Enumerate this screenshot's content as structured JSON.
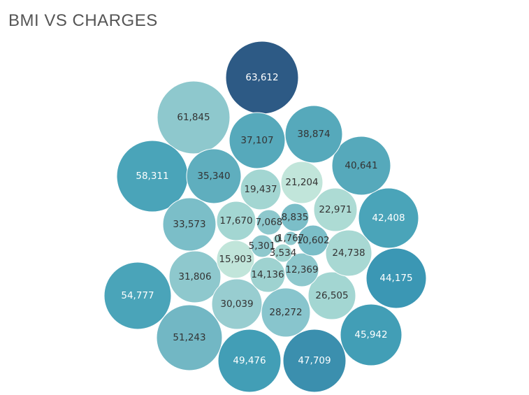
{
  "chart_data": {
    "type": "packed-bubble",
    "title": "BMI VS CHARGES",
    "size_and_color_by": "charges",
    "color_scale": [
      "#c7e9d9",
      "#2d5a85"
    ],
    "bubbles": [
      {
        "label": "63,612",
        "value": 63612,
        "color": "#2d5a85"
      },
      {
        "label": "61,845",
        "value": 61845,
        "color": "#8ec8cd"
      },
      {
        "label": "58,311",
        "value": 58311,
        "color": "#4aa4b9"
      },
      {
        "label": "54,777",
        "value": 54777,
        "color": "#4aa4b9"
      },
      {
        "label": "51,243",
        "value": 51243,
        "color": "#72b7c4"
      },
      {
        "label": "49,476",
        "value": 49476,
        "color": "#429eb6"
      },
      {
        "label": "47,709",
        "value": 47709,
        "color": "#3b8fae"
      },
      {
        "label": "45,942",
        "value": 45942,
        "color": "#429eb6"
      },
      {
        "label": "44,175",
        "value": 44175,
        "color": "#3b97b4"
      },
      {
        "label": "42,408",
        "value": 42408,
        "color": "#4aa4b9"
      },
      {
        "label": "40,641",
        "value": 40641,
        "color": "#56a9bb"
      },
      {
        "label": "38,874",
        "value": 38874,
        "color": "#56a9bb"
      },
      {
        "label": "37,107",
        "value": 37107,
        "color": "#56a9bb"
      },
      {
        "label": "35,340",
        "value": 35340,
        "color": "#5faebe"
      },
      {
        "label": "33,573",
        "value": 33573,
        "color": "#7bbec8"
      },
      {
        "label": "31,806",
        "value": 31806,
        "color": "#8ec8cd"
      },
      {
        "label": "30,039",
        "value": 30039,
        "color": "#98cdd0"
      },
      {
        "label": "28,272",
        "value": 28272,
        "color": "#88c5cd"
      },
      {
        "label": "26,505",
        "value": 26505,
        "color": "#a3d6d2"
      },
      {
        "label": "24,738",
        "value": 24738,
        "color": "#a8d8d3"
      },
      {
        "label": "22,971",
        "value": 22971,
        "color": "#addbd4"
      },
      {
        "label": "21,204",
        "value": 21204,
        "color": "#c1e5da"
      },
      {
        "label": "19,437",
        "value": 19437,
        "color": "#a3d6d2"
      },
      {
        "label": "17,670",
        "value": 17670,
        "color": "#a3d6d2"
      },
      {
        "label": "15,903",
        "value": 15903,
        "color": "#c1e5da"
      },
      {
        "label": "14,136",
        "value": 14136,
        "color": "#9ed2d0"
      },
      {
        "label": "12,369",
        "value": 12369,
        "color": "#8ec8cd"
      },
      {
        "label": "10,602",
        "value": 10602,
        "color": "#7bbec8"
      },
      {
        "label": "8,835",
        "value": 8835,
        "color": "#7bbec8"
      },
      {
        "label": "7,068",
        "value": 7068,
        "color": "#8ec8cd"
      },
      {
        "label": "5,301",
        "value": 5301,
        "color": "#8ec8cd"
      },
      {
        "label": "3,534",
        "value": 3534,
        "color": "#a3d6d2"
      },
      {
        "label": "1,767",
        "value": 1767,
        "color": "#8ec8cd"
      },
      {
        "label": "0",
        "value": 0,
        "color": "#a3d6d2"
      }
    ]
  }
}
